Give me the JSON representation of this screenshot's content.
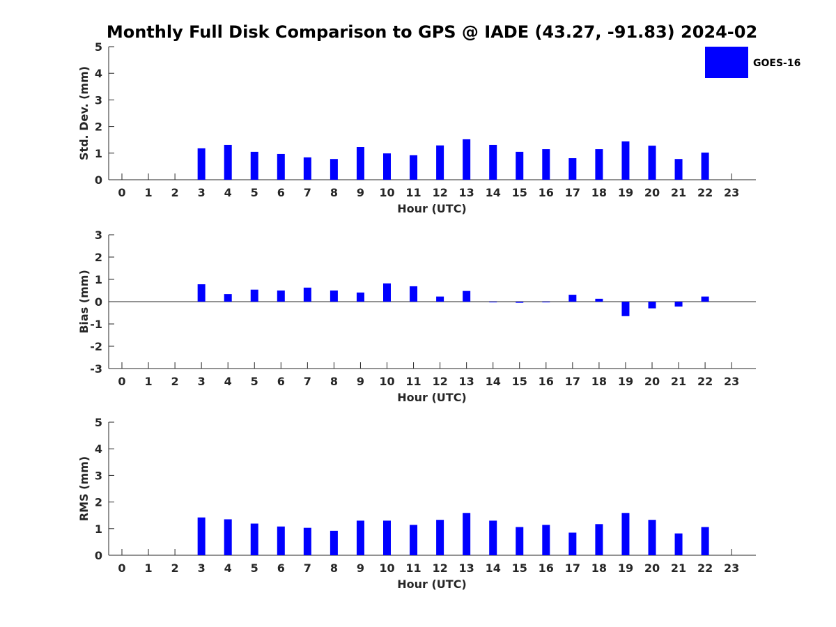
{
  "chart_data": {
    "title": "Monthly Full Disk Comparison to GPS @ IADE (43.27, -91.83) 2024-02",
    "legend": {
      "label": "GOES-16",
      "color": "#0000ff",
      "placement": "top-right"
    },
    "bar_color": "#0000ff",
    "panels": [
      {
        "id": "std",
        "type": "bar",
        "ylabel": "Std. Dev. (mm)",
        "xlabel": "Hour (UTC)",
        "ylim": [
          0,
          5
        ],
        "yticks": [
          0,
          1,
          2,
          3,
          4,
          5
        ],
        "categories": [
          0,
          1,
          2,
          3,
          4,
          5,
          6,
          7,
          8,
          9,
          10,
          11,
          12,
          13,
          14,
          15,
          16,
          17,
          18,
          19,
          20,
          21,
          22,
          23
        ],
        "values": [
          null,
          null,
          null,
          1.18,
          1.31,
          1.05,
          0.97,
          0.84,
          0.78,
          1.23,
          0.99,
          0.92,
          1.29,
          1.52,
          1.31,
          1.05,
          1.15,
          0.81,
          1.15,
          1.44,
          1.28,
          0.78,
          1.02,
          null
        ]
      },
      {
        "id": "bias",
        "type": "bar",
        "ylabel": "Bias (mm)",
        "xlabel": "Hour (UTC)",
        "ylim": [
          -3,
          3
        ],
        "yticks": [
          -3,
          -2,
          -1,
          0,
          1,
          2,
          3
        ],
        "zero_line": true,
        "categories": [
          0,
          1,
          2,
          3,
          4,
          5,
          6,
          7,
          8,
          9,
          10,
          11,
          12,
          13,
          14,
          15,
          16,
          17,
          18,
          19,
          20,
          21,
          22,
          23
        ],
        "values": [
          null,
          null,
          null,
          0.78,
          0.34,
          0.54,
          0.5,
          0.63,
          0.5,
          0.41,
          0.82,
          0.69,
          0.23,
          0.48,
          0.0,
          -0.05,
          -0.02,
          0.31,
          0.13,
          -0.65,
          -0.3,
          -0.22,
          0.23,
          null
        ]
      },
      {
        "id": "rms",
        "type": "bar",
        "ylabel": "RMS (mm)",
        "xlabel": "Hour (UTC)",
        "ylim": [
          0,
          5
        ],
        "yticks": [
          0,
          1,
          2,
          3,
          4,
          5
        ],
        "categories": [
          0,
          1,
          2,
          3,
          4,
          5,
          6,
          7,
          8,
          9,
          10,
          11,
          12,
          13,
          14,
          15,
          16,
          17,
          18,
          19,
          20,
          21,
          22,
          23
        ],
        "values": [
          null,
          null,
          null,
          1.42,
          1.35,
          1.19,
          1.08,
          1.03,
          0.92,
          1.3,
          1.3,
          1.14,
          1.33,
          1.59,
          1.3,
          1.06,
          1.14,
          0.85,
          1.17,
          1.59,
          1.33,
          0.82,
          1.06,
          null
        ]
      }
    ]
  }
}
